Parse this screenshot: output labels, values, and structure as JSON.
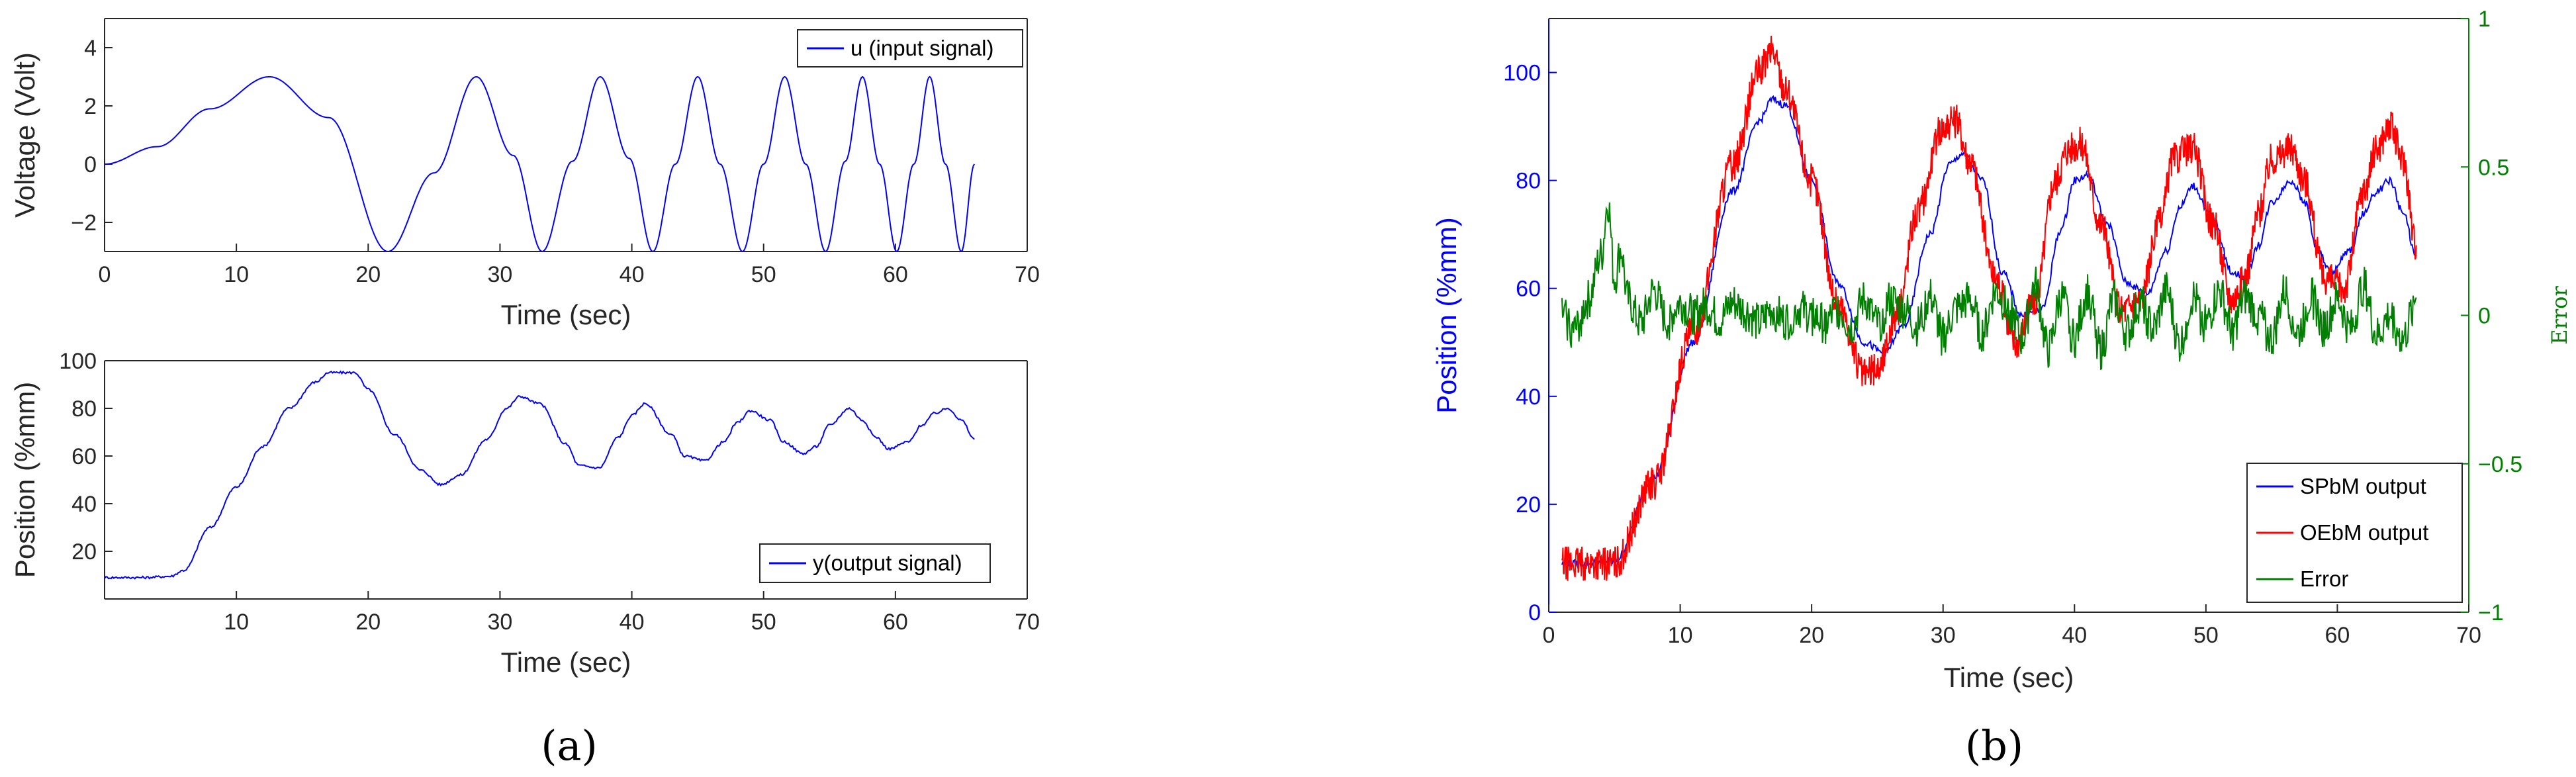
{
  "panel_labels": {
    "a": "(a)",
    "b": "(b)"
  },
  "chart_data": [
    {
      "id": "a-top",
      "type": "line",
      "xlabel": "Time (sec)",
      "ylabel": "Voltage (Volt)",
      "xlim": [
        0,
        70
      ],
      "ylim": [
        -3,
        5
      ],
      "xticks": [
        0,
        10,
        20,
        30,
        40,
        50,
        60,
        70
      ],
      "yticks": [
        -2,
        0,
        2,
        4
      ],
      "grid": false,
      "legend_position": "top-right",
      "colors": {
        "u": "#0000ff"
      },
      "series": [
        {
          "name": "u (input signal)",
          "color": "#0000ff",
          "x": [
            0,
            4,
            8,
            12.5,
            17,
            21.5,
            25,
            28.2,
            31,
            33.2,
            35.5,
            37.6,
            39.8,
            41.6,
            43.3,
            45,
            46.7,
            48.4,
            50,
            51.6,
            53.2,
            54.7,
            56.2,
            57.5,
            58.8,
            60.1,
            61.4,
            62.6,
            63.8,
            65,
            66
          ],
          "y": [
            0,
            0.6,
            1.9,
            3,
            1.6,
            -3,
            -0.3,
            3,
            0.3,
            -3,
            0.1,
            3,
            0.2,
            -3,
            0,
            3,
            0,
            -3,
            0,
            3,
            0,
            -3,
            0.1,
            3,
            0,
            -3,
            0,
            3,
            0,
            -3,
            0
          ]
        }
      ]
    },
    {
      "id": "a-bottom",
      "type": "line",
      "xlabel": "Time (sec)",
      "ylabel": "Position (%mm)",
      "xlim": [
        0,
        70
      ],
      "ylim": [
        0,
        100
      ],
      "xticks": [
        10,
        20,
        30,
        40,
        50,
        60,
        70
      ],
      "yticks": [
        20,
        40,
        60,
        80,
        100
      ],
      "grid": false,
      "legend_position": "bottom-right",
      "series": [
        {
          "name": "y(output signal)",
          "color": "#0000ff",
          "x": [
            0,
            3,
            5,
            6,
            8,
            10,
            12,
            14,
            16,
            17,
            19,
            20,
            22,
            24,
            25.5,
            27,
            29,
            30.5,
            31.5,
            33,
            35,
            36,
            37.5,
            39,
            40,
            41,
            43,
            44,
            45.5,
            47,
            48,
            49,
            50.5,
            51.5,
            53,
            54,
            55,
            56.5,
            57.5,
            58.5,
            59.5,
            61,
            62,
            63,
            64,
            65,
            66
          ],
          "y": [
            9,
            9,
            9.5,
            12,
            30,
            47,
            64,
            80,
            91,
            95,
            95,
            88,
            69,
            54,
            48,
            52,
            67,
            80,
            85,
            82,
            65,
            56,
            55,
            68,
            77,
            82,
            69,
            60,
            58,
            66,
            74,
            79,
            75,
            66,
            61,
            64,
            73,
            80,
            75,
            68,
            63,
            66,
            73,
            78,
            80,
            75,
            67
          ]
        }
      ]
    },
    {
      "id": "b",
      "type": "line",
      "xlabel": "Time (sec)",
      "ylabel": "Position (%mm)",
      "y2label": "Error",
      "xlim": [
        0,
        70
      ],
      "ylim": [
        0,
        110
      ],
      "y2lim": [
        -1,
        1
      ],
      "xticks": [
        0,
        10,
        20,
        30,
        40,
        50,
        60,
        70
      ],
      "yticks": [
        0,
        20,
        40,
        60,
        80,
        100
      ],
      "y2ticks": [
        -1,
        -0.5,
        0,
        0.5,
        1
      ],
      "y2ticklabels": [
        "−1",
        "−0.5",
        "0",
        "0.5",
        "1"
      ],
      "grid": false,
      "legend_position": "bottom-right",
      "colors": {
        "left_axis": "#0000ff",
        "right_axis": "#008000"
      },
      "series": [
        {
          "name": "SPbM output",
          "color": "#0000ff",
          "axis": "left",
          "x": [
            1,
            3,
            5,
            8,
            11,
            14,
            16,
            17,
            18,
            20,
            22,
            24,
            25.5,
            27,
            29,
            30.5,
            31.5,
            33,
            34.5,
            36,
            37.5,
            39,
            40,
            41,
            42.5,
            44,
            45.5,
            47,
            48,
            49,
            50.5,
            52,
            53,
            54,
            55,
            56.5,
            57.5,
            58.5,
            59.5,
            61,
            62,
            63,
            64,
            65,
            66
          ],
          "y": [
            9,
            9,
            9.5,
            25,
            50,
            78,
            91,
            95,
            94,
            80,
            61,
            50,
            48,
            53,
            70,
            83,
            85,
            80,
            63,
            55,
            56,
            71,
            80,
            81,
            72,
            61,
            59,
            67,
            75,
            79,
            73,
            63,
            62,
            68,
            76,
            80,
            76,
            67,
            63,
            67,
            74,
            78,
            80,
            74,
            66
          ]
        },
        {
          "name": "OEbM output",
          "color": "#ff0000",
          "axis": "left",
          "x": [
            1,
            3,
            5,
            8,
            11,
            14,
            16,
            17,
            18,
            20,
            22,
            24,
            25,
            26.5,
            28,
            30,
            31,
            32,
            34,
            35.5,
            37,
            38.5,
            39.5,
            40.5,
            42,
            43.5,
            45,
            46.5,
            47.5,
            49,
            50.5,
            52,
            53,
            54,
            55,
            56.5,
            57.5,
            59,
            60.5,
            62,
            63,
            64,
            65,
            66
          ],
          "y": [
            9,
            9,
            9,
            24,
            52,
            83,
            100,
            104,
            97,
            80,
            57,
            44,
            45,
            55,
            74,
            90,
            91,
            84,
            62,
            50,
            58,
            80,
            86,
            87,
            72,
            56,
            58,
            72,
            84,
            86,
            72,
            58,
            62,
            74,
            84,
            86,
            80,
            62,
            60,
            78,
            86,
            90,
            84,
            68
          ]
        },
        {
          "name": "Error",
          "color": "#008000",
          "axis": "right",
          "x": [
            1,
            2,
            3,
            4,
            4.5,
            5,
            5.5,
            6,
            7,
            8,
            9,
            10,
            11,
            12,
            13,
            14,
            15,
            16,
            17,
            18,
            19,
            20,
            21,
            22,
            23,
            24,
            25,
            26,
            27,
            28,
            29,
            30,
            31,
            32,
            33,
            34,
            35,
            36,
            37,
            38,
            39,
            40,
            41,
            42,
            43,
            44,
            45,
            46,
            47,
            48,
            49,
            50,
            51,
            52,
            53,
            54,
            55,
            56,
            57,
            58,
            59,
            60,
            61,
            62,
            63,
            64,
            65,
            66
          ],
          "y": [
            0,
            -0.05,
            0.05,
            0.2,
            0.38,
            0.12,
            0.22,
            0.05,
            -0.03,
            0.08,
            -0.02,
            0.04,
            0.0,
            0.03,
            -0.02,
            0.04,
            0.01,
            -0.03,
            0.02,
            -0.02,
            0.02,
            0.0,
            -0.03,
            0.02,
            -0.04,
            0.05,
            -0.03,
            0.05,
            0.02,
            -0.04,
            0.06,
            -0.07,
            0.02,
            0.05,
            -0.06,
            0.08,
            0.02,
            -0.08,
            0.1,
            -0.12,
            0.06,
            -0.08,
            0.08,
            -0.12,
            0.05,
            -0.06,
            0.04,
            -0.05,
            0.08,
            -0.1,
            0.06,
            -0.03,
            0.08,
            -0.05,
            0.06,
            0.0,
            -0.08,
            0.08,
            -0.06,
            0.06,
            -0.04,
            0.05,
            -0.05,
            0.1,
            -0.07,
            0.0,
            -0.08,
            0.06
          ]
        }
      ]
    }
  ]
}
